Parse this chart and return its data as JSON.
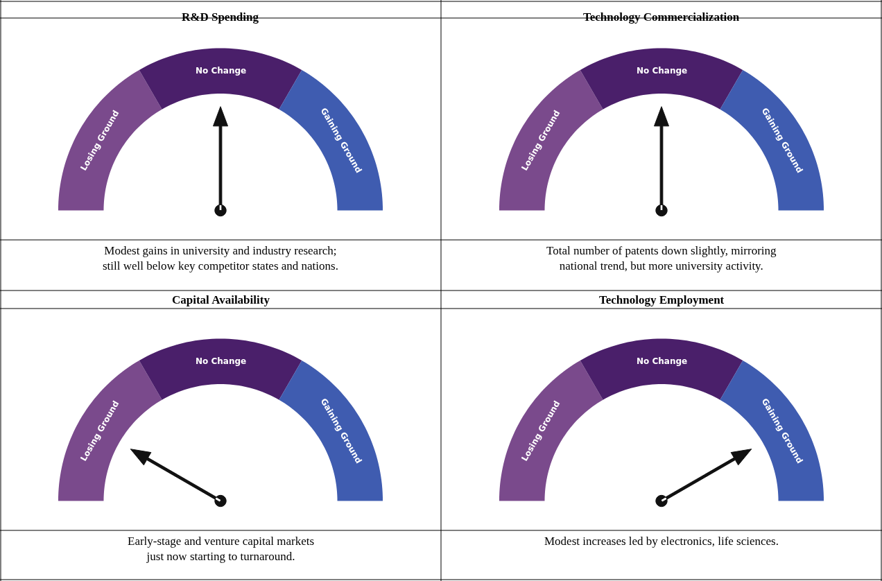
{
  "chart_data": [
    {
      "type": "donut",
      "title": "R&D Spending",
      "categories": [
        "Losing Ground",
        "No Change",
        "Gaining Ground"
      ],
      "values": [
        33.3,
        33.4,
        33.3
      ],
      "colors": [
        "#7a4a8c",
        "#4a1f6a",
        "#3f5cb0"
      ],
      "needle": "No Change",
      "annotations": [
        "Modest gains in university and industry research;\nstill well below key competitor states and nations."
      ]
    },
    {
      "type": "donut",
      "title": "Technology Commercialization",
      "categories": [
        "Losing Ground",
        "No Change",
        "Gaining Ground"
      ],
      "values": [
        33.3,
        33.4,
        33.3
      ],
      "colors": [
        "#7a4a8c",
        "#4a1f6a",
        "#3f5cb0"
      ],
      "needle": "No Change",
      "annotations": [
        "Total number of patents down slightly, mirroring\nnational trend, but more university activity."
      ]
    },
    {
      "type": "donut",
      "title": "Capital Availability",
      "categories": [
        "Losing Ground",
        "No Change",
        "Gaining Ground"
      ],
      "values": [
        33.3,
        33.4,
        33.3
      ],
      "colors": [
        "#7a4a8c",
        "#4a1f6a",
        "#3f5cb0"
      ],
      "needle": "Losing Ground",
      "annotations": [
        "Early-stage and venture capital markets\njust now starting to turnaround."
      ]
    },
    {
      "type": "donut",
      "title": "Technology Employment",
      "categories": [
        "Losing Ground",
        "No Change",
        "Gaining Ground"
      ],
      "values": [
        33.3,
        33.4,
        33.3
      ],
      "colors": [
        "#7a4a8c",
        "#4a1f6a",
        "#3f5cb0"
      ],
      "needle": "Gaining Ground",
      "annotations": [
        "Modest increases led by electronics, life sciences."
      ]
    }
  ]
}
